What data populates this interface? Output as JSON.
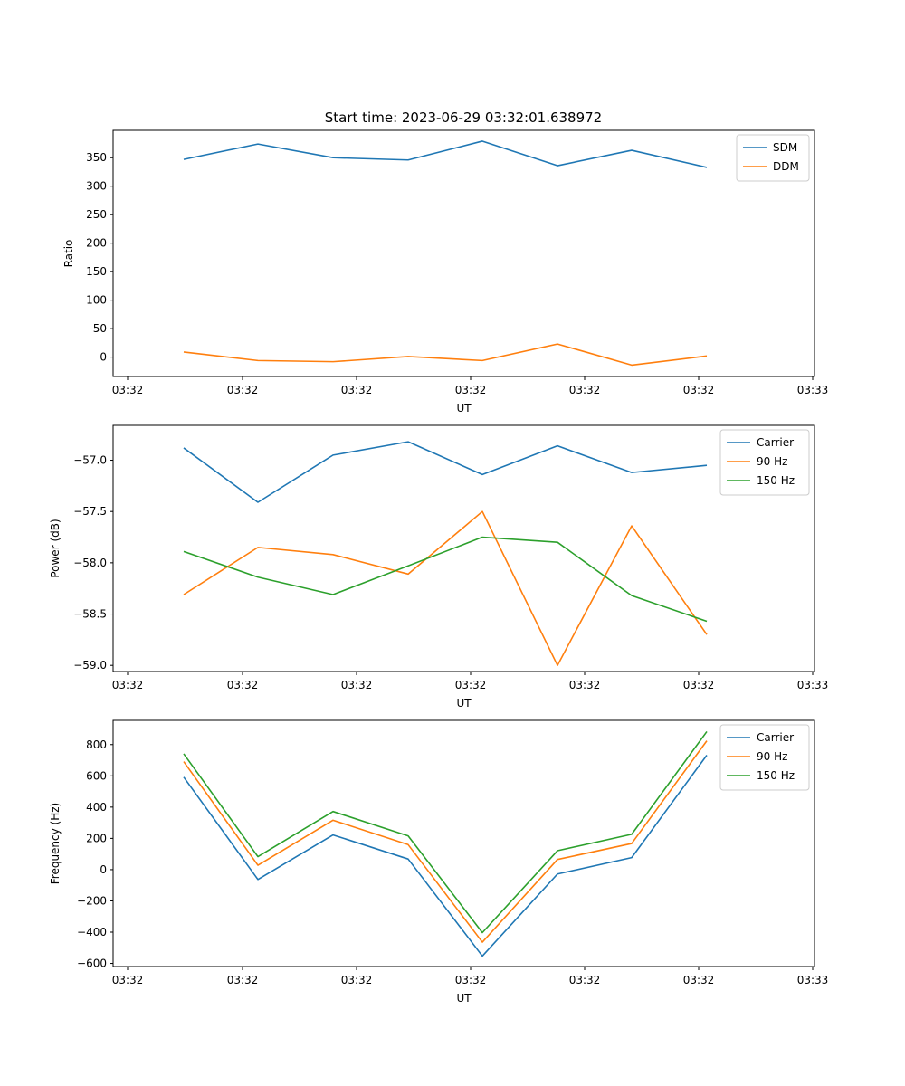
{
  "title": "Start time: 2023-06-29 03:32:01.638972",
  "chart_data": [
    {
      "type": "line",
      "xlabel": "UT",
      "ylabel": "Ratio",
      "x_tick_labels": [
        "03:32",
        "03:32",
        "03:32",
        "03:32",
        "03:32",
        "03:32",
        "03:33"
      ],
      "y_ticks": [
        0,
        50,
        100,
        150,
        200,
        250,
        300,
        350
      ],
      "y_tick_labels": [
        "0",
        "50",
        "100",
        "150",
        "200",
        "250",
        "300",
        "350"
      ],
      "ylim": [
        -34,
        398
      ],
      "legend_position": "top-right",
      "series": [
        {
          "name": "SDM",
          "color": "#1f77b4",
          "values": [
            347,
            374,
            350,
            346,
            379,
            336,
            363,
            333
          ]
        },
        {
          "name": "DDM",
          "color": "#ff7f0e",
          "values": [
            9,
            -6,
            -8,
            1,
            -6,
            23,
            -14,
            2
          ]
        }
      ]
    },
    {
      "type": "line",
      "xlabel": "UT",
      "ylabel": "Power (dB)",
      "x_tick_labels": [
        "03:32",
        "03:32",
        "03:32",
        "03:32",
        "03:32",
        "03:32",
        "03:33"
      ],
      "y_ticks": [
        -59.0,
        -58.5,
        -58.0,
        -57.5,
        -57.0
      ],
      "y_tick_labels": [
        "−59.0",
        "−58.5",
        "−58.0",
        "−57.5",
        "−57.0"
      ],
      "ylim": [
        -59.06,
        -56.66
      ],
      "legend_position": "top-right",
      "series": [
        {
          "name": "Carrier",
          "color": "#1f77b4",
          "values": [
            -56.88,
            -57.41,
            -56.95,
            -56.82,
            -57.14,
            -56.86,
            -57.12,
            -57.05
          ]
        },
        {
          "name": "90 Hz",
          "color": "#ff7f0e",
          "values": [
            -58.31,
            -57.85,
            -57.92,
            -58.11,
            -57.5,
            -59.0,
            -57.64,
            -58.7
          ]
        },
        {
          "name": "150 Hz",
          "color": "#2ca02c",
          "values": [
            -57.89,
            -58.14,
            -58.31,
            -58.03,
            -57.75,
            -57.8,
            -58.32,
            -58.57
          ]
        }
      ]
    },
    {
      "type": "line",
      "xlabel": "UT",
      "ylabel": "Frequency (Hz)",
      "x_tick_labels": [
        "03:32",
        "03:32",
        "03:32",
        "03:32",
        "03:32",
        "03:32",
        "03:33"
      ],
      "y_ticks": [
        -600,
        -400,
        -200,
        0,
        200,
        400,
        600,
        800
      ],
      "y_tick_labels": [
        "−600",
        "−400",
        "−200",
        "0",
        "200",
        "400",
        "600",
        "800"
      ],
      "ylim": [
        -620,
        955
      ],
      "legend_position": "top-right",
      "series": [
        {
          "name": "Carrier",
          "color": "#1f77b4",
          "values": [
            592,
            -63,
            222,
            68,
            -553,
            -28,
            77,
            732
          ]
        },
        {
          "name": "90 Hz",
          "color": "#ff7f0e",
          "values": [
            691,
            28,
            316,
            160,
            -464,
            65,
            167,
            824
          ]
        },
        {
          "name": "150 Hz",
          "color": "#2ca02c",
          "values": [
            741,
            83,
            372,
            216,
            -403,
            121,
            226,
            883
          ]
        }
      ]
    }
  ]
}
